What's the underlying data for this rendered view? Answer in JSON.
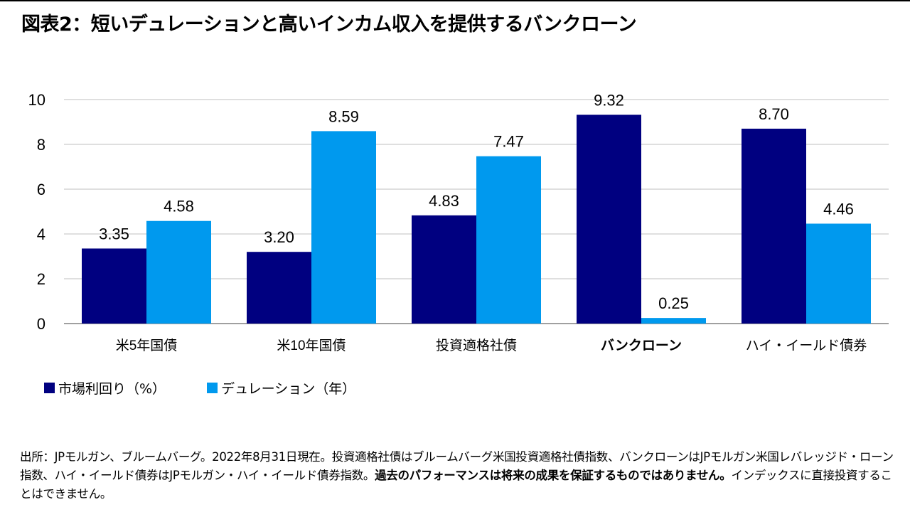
{
  "title": "図表2：短いデュレーションと高いインカム収入を提供するバンクローン",
  "colors": {
    "series_yield": "#000080",
    "series_duration": "#0099ee",
    "grid": "#bfbfbf",
    "axis": "#808080"
  },
  "legend": [
    {
      "label": "市場利回り（%）",
      "color": "#000080"
    },
    {
      "label": "デュレーション（年）",
      "color": "#0099ee"
    }
  ],
  "chart_data": {
    "type": "bar",
    "categories": [
      "米5年国債",
      "米10年国債",
      "投資適格社債",
      "バンクローン",
      "ハイ・イールド債券"
    ],
    "highlight_category": "バンクローン",
    "series": [
      {
        "name": "市場利回り（%）",
        "values": [
          3.35,
          3.2,
          4.83,
          9.32,
          8.7
        ],
        "labels": [
          "3.35",
          "3.20",
          "4.83",
          "9.32",
          "8.70"
        ]
      },
      {
        "name": "デュレーション（年）",
        "values": [
          4.58,
          8.59,
          7.47,
          0.25,
          4.46
        ],
        "labels": [
          "4.58",
          "8.59",
          "7.47",
          "0.25",
          "4.46"
        ]
      }
    ],
    "ylim": [
      0,
      10
    ],
    "yticks": [
      0,
      2,
      4,
      6,
      8,
      10
    ],
    "ytick_labels": [
      "0",
      "2",
      "4",
      "6",
      "8",
      "10"
    ],
    "grid": true,
    "legend_position": "bottom-left"
  },
  "source": {
    "text_1": "出所：JPモルガン、ブルームバーグ。2022年8月31日現在。投資適格社債はブルームバーグ米国投資適格社債指数、バンクローンはJPモルガン米国レバレッジド・ローン指数、ハイ・イールド債券はJPモルガン・ハイ・イールド債券指数。",
    "bold": "過去のパフォーマンスは将来の成果を保証するものではありません。",
    "text_2": "インデックスに直接投資することはできません。"
  }
}
